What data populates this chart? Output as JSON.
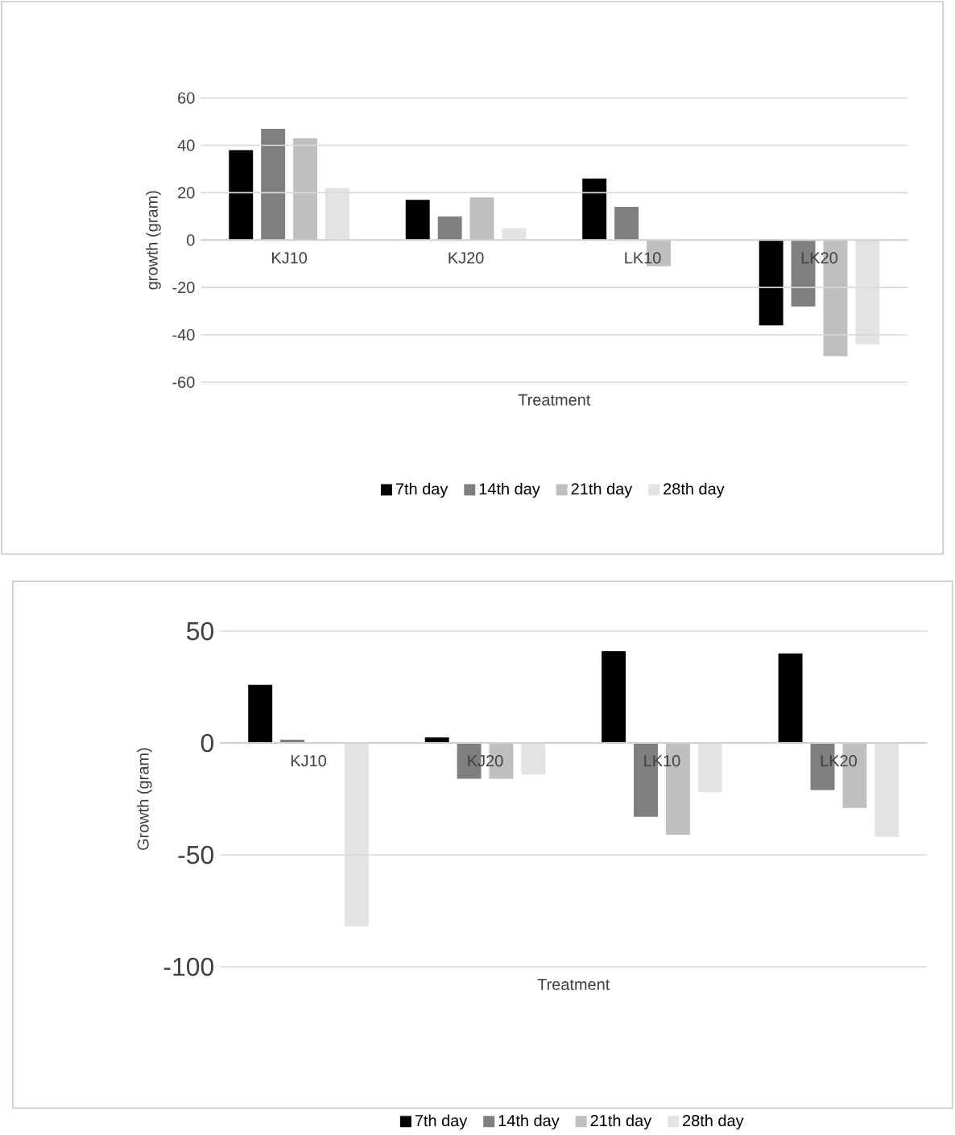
{
  "chart_data": [
    {
      "type": "bar",
      "xlabel": "Treatment",
      "ylabel": "growth (gram)",
      "categories": [
        "KJ10",
        "KJ20",
        "LK10",
        "LK20"
      ],
      "series": [
        {
          "name": "7th day",
          "color": "#000000",
          "values": [
            38,
            17,
            26,
            -36
          ]
        },
        {
          "name": "14th day",
          "color": "#7f7f7f",
          "values": [
            47,
            10,
            14,
            -28
          ]
        },
        {
          "name": "21th day",
          "color": "#bfbfbf",
          "values": [
            43,
            18,
            -11,
            -49
          ]
        },
        {
          "name": "28th day",
          "color": "#e3e3e3",
          "values": [
            22,
            5,
            0,
            -44
          ]
        }
      ],
      "ylim": [
        -60,
        60
      ],
      "yticks": [
        -60,
        -40,
        -20,
        0,
        20,
        40,
        60
      ],
      "grid": "y",
      "legend": "bottom"
    },
    {
      "type": "bar",
      "xlabel": "Treatment",
      "ylabel": "Growth (gram)",
      "categories": [
        "KJ10",
        "KJ20",
        "LK10",
        "LK20"
      ],
      "series": [
        {
          "name": "7th day",
          "color": "#000000",
          "values": [
            26,
            2.5,
            41,
            40
          ]
        },
        {
          "name": "14th day",
          "color": "#7f7f7f",
          "values": [
            1.5,
            -16,
            -33,
            -21
          ]
        },
        {
          "name": "21th day",
          "color": "#bfbfbf",
          "values": [
            0,
            -16,
            -41,
            -29
          ]
        },
        {
          "name": "28th day",
          "color": "#e3e3e3",
          "values": [
            -82,
            -14,
            -22,
            -42
          ]
        }
      ],
      "ylim": [
        -100,
        50
      ],
      "yticks": [
        -100,
        -50,
        0,
        50
      ],
      "grid": "y",
      "legend": "bottom"
    }
  ]
}
